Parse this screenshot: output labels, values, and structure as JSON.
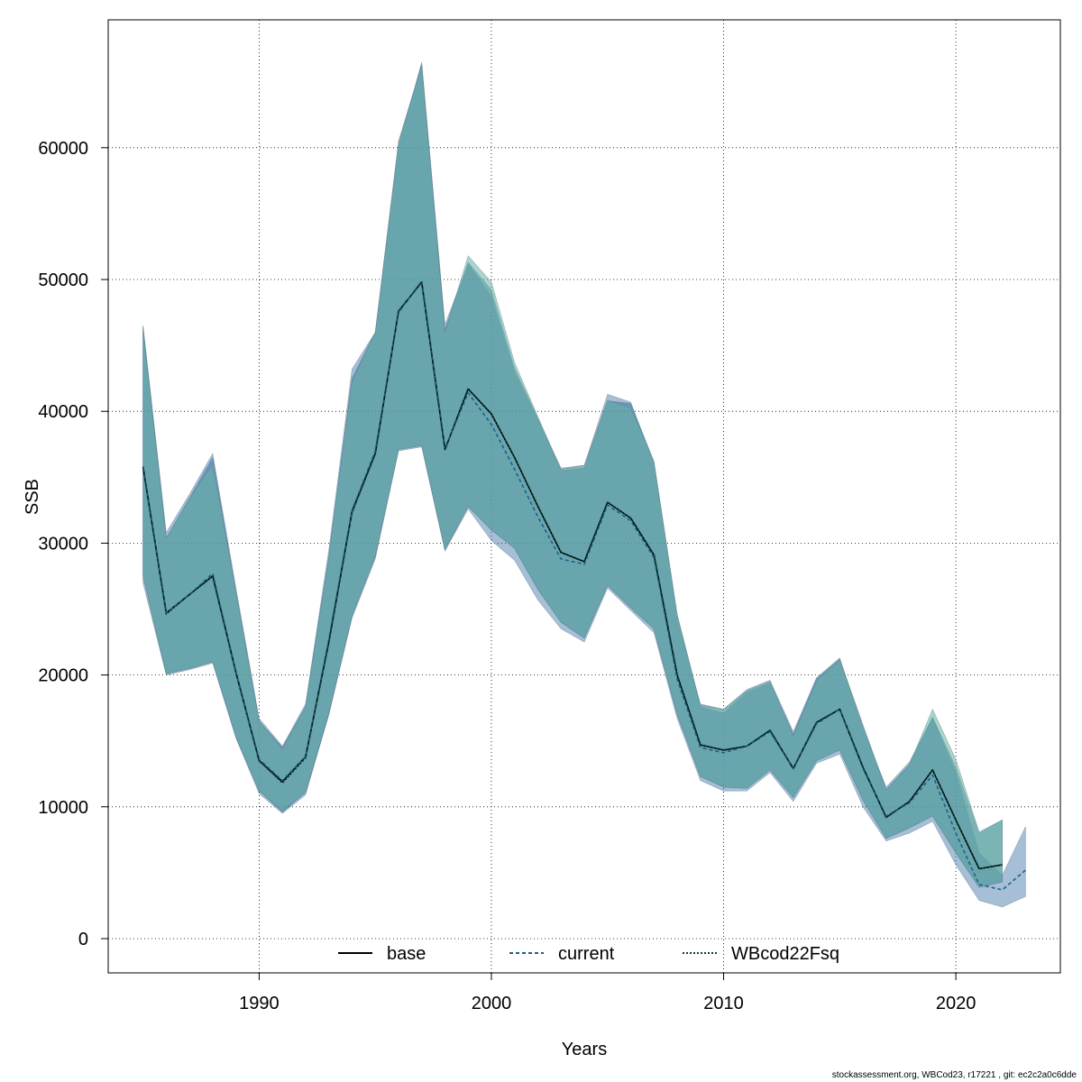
{
  "chart_data": {
    "type": "line",
    "title": "",
    "xlabel": "Years",
    "ylabel": "SSB",
    "xlim": [
      1983.5,
      2024.5
    ],
    "ylim": [
      -2600,
      69700
    ],
    "x_ticks": [
      1990,
      2000,
      2010,
      2020
    ],
    "y_ticks": [
      0,
      10000,
      20000,
      30000,
      40000,
      50000,
      60000
    ],
    "x_tick_labels": [
      "1990",
      "2000",
      "2010",
      "2020"
    ],
    "y_tick_labels": [
      "0",
      "10000",
      "20000",
      "30000",
      "40000",
      "50000",
      "60000"
    ],
    "grid": true,
    "legend_position": "bottom",
    "series": [
      {
        "name": "base",
        "line_style": "solid",
        "color": "#000000",
        "band_color": "#2E6E9E",
        "x": [
          1985,
          1986,
          1987,
          1988,
          1989,
          1990,
          1991,
          1992,
          1993,
          1994,
          1995,
          1996,
          1997,
          1998,
          1999,
          2000,
          2001,
          2002,
          2003,
          2004,
          2005,
          2006,
          2007,
          2008,
          2009,
          2010,
          2011,
          2012,
          2013,
          2014,
          2015,
          2016,
          2017,
          2018,
          2019,
          2020,
          2021,
          2022
        ],
        "values": [
          35800,
          24700,
          26100,
          27500,
          20200,
          13500,
          11900,
          13800,
          22500,
          32400,
          36800,
          47600,
          49800,
          37100,
          41700,
          39800,
          36500,
          32800,
          29300,
          28600,
          33100,
          31900,
          29100,
          20000,
          14700,
          14300,
          14600,
          15800,
          12900,
          16400,
          17400,
          13000,
          9200,
          10400,
          12800,
          9000,
          5300,
          5600
        ],
        "lower": [
          27500,
          20100,
          20500,
          21000,
          15300,
          11200,
          9600,
          11100,
          17000,
          24500,
          29000,
          37100,
          37400,
          29500,
          32800,
          31000,
          29600,
          26500,
          24000,
          22800,
          26800,
          25100,
          23500,
          17000,
          12300,
          11500,
          11400,
          12800,
          10700,
          13500,
          14300,
          10500,
          7600,
          8400,
          9300,
          6500,
          3900,
          4300
        ],
        "upper": [
          46500,
          30400,
          33400,
          36500,
          26300,
          16500,
          14500,
          17600,
          29000,
          42500,
          46000,
          60500,
          66300,
          46200,
          51300,
          49200,
          43300,
          39500,
          35500,
          35700,
          40800,
          40600,
          36200,
          24600,
          17600,
          17100,
          18700,
          19400,
          15500,
          19700,
          21200,
          16200,
          11300,
          13200,
          16800,
          13000,
          8000,
          9000
        ]
      },
      {
        "name": "current",
        "line_style": "dashed",
        "color": "#1F5F8B",
        "band_color": "#3A6EA5",
        "x": [
          1985,
          1986,
          1987,
          1988,
          1989,
          1990,
          1991,
          1992,
          1993,
          1994,
          1995,
          1996,
          1997,
          1998,
          1999,
          2000,
          2001,
          2002,
          2003,
          2004,
          2005,
          2006,
          2007,
          2008,
          2009,
          2010,
          2011,
          2012,
          2013,
          2014,
          2015,
          2016,
          2017,
          2018,
          2019,
          2020,
          2021,
          2022,
          2023
        ],
        "values": [
          35700,
          24700,
          26100,
          27700,
          20200,
          13600,
          12000,
          13800,
          22700,
          32500,
          37000,
          47500,
          49900,
          37200,
          41400,
          39000,
          35600,
          32000,
          28800,
          28400,
          32900,
          31700,
          28900,
          19700,
          14500,
          14100,
          14600,
          15700,
          12900,
          16300,
          17400,
          12900,
          9300,
          10300,
          12400,
          8000,
          4100,
          3700,
          5200
        ],
        "lower": [
          27000,
          20000,
          20400,
          20900,
          15200,
          11000,
          9500,
          10900,
          17000,
          24300,
          28800,
          37000,
          37300,
          29400,
          32600,
          30200,
          28700,
          25700,
          23500,
          22500,
          26600,
          24900,
          23200,
          16700,
          12000,
          11200,
          11200,
          12600,
          10400,
          13300,
          14000,
          10000,
          7400,
          8000,
          8900,
          5600,
          2900,
          2400,
          3200
        ],
        "upper": [
          46500,
          30800,
          33700,
          36800,
          26600,
          16700,
          14600,
          17800,
          29500,
          43200,
          46000,
          60000,
          66500,
          46600,
          51200,
          48700,
          43000,
          39400,
          35700,
          35900,
          41300,
          40700,
          36000,
          24300,
          17800,
          17400,
          18900,
          19600,
          15700,
          19800,
          21300,
          15900,
          11500,
          13400,
          16800,
          12600,
          6500,
          4800,
          8500
        ]
      },
      {
        "name": "WBcod22Fsq",
        "line_style": "dotted",
        "color": "#0A3D3D",
        "band_color": "#66B2A0",
        "x": [
          1985,
          1986,
          1987,
          1988,
          1989,
          1990,
          1991,
          1992,
          1993,
          1994,
          1995,
          1996,
          1997,
          1998,
          1999,
          2000,
          2001,
          2002,
          2003,
          2004,
          2005,
          2006,
          2007,
          2008,
          2009,
          2010,
          2011,
          2012,
          2013,
          2014,
          2015,
          2016,
          2017,
          2018,
          2019,
          2020,
          2021,
          2022
        ],
        "values": [
          35800,
          24600,
          26100,
          27500,
          20100,
          13500,
          11800,
          13700,
          22500,
          32300,
          36800,
          47600,
          49800,
          37100,
          41700,
          39800,
          36500,
          32800,
          29300,
          28600,
          33100,
          31900,
          29100,
          20000,
          14700,
          14300,
          14600,
          15800,
          12900,
          16400,
          17400,
          13000,
          9200,
          10400,
          12800,
          9000,
          5300,
          5600
        ],
        "lower": [
          27500,
          20100,
          20500,
          21000,
          15300,
          11200,
          9700,
          11100,
          17100,
          24500,
          29000,
          37100,
          37400,
          29500,
          32800,
          31000,
          29600,
          26500,
          24000,
          22800,
          26800,
          25100,
          23500,
          17000,
          12300,
          11500,
          11400,
          12800,
          10700,
          13500,
          14300,
          10500,
          7600,
          8400,
          9300,
          6500,
          3900,
          4300
        ],
        "upper": [
          46300,
          30400,
          33400,
          36000,
          26300,
          16500,
          14400,
          17600,
          29000,
          42300,
          46000,
          60300,
          66300,
          46000,
          51800,
          49800,
          43700,
          39600,
          35600,
          35900,
          40800,
          40300,
          36200,
          24600,
          17700,
          17400,
          18800,
          19500,
          15400,
          19600,
          21200,
          16200,
          11300,
          13200,
          17400,
          13600,
          8100,
          9000
        ]
      }
    ]
  },
  "footer": "stockassessment.org, WBCod23, r17221 , git: ec2c2a0c6dde"
}
